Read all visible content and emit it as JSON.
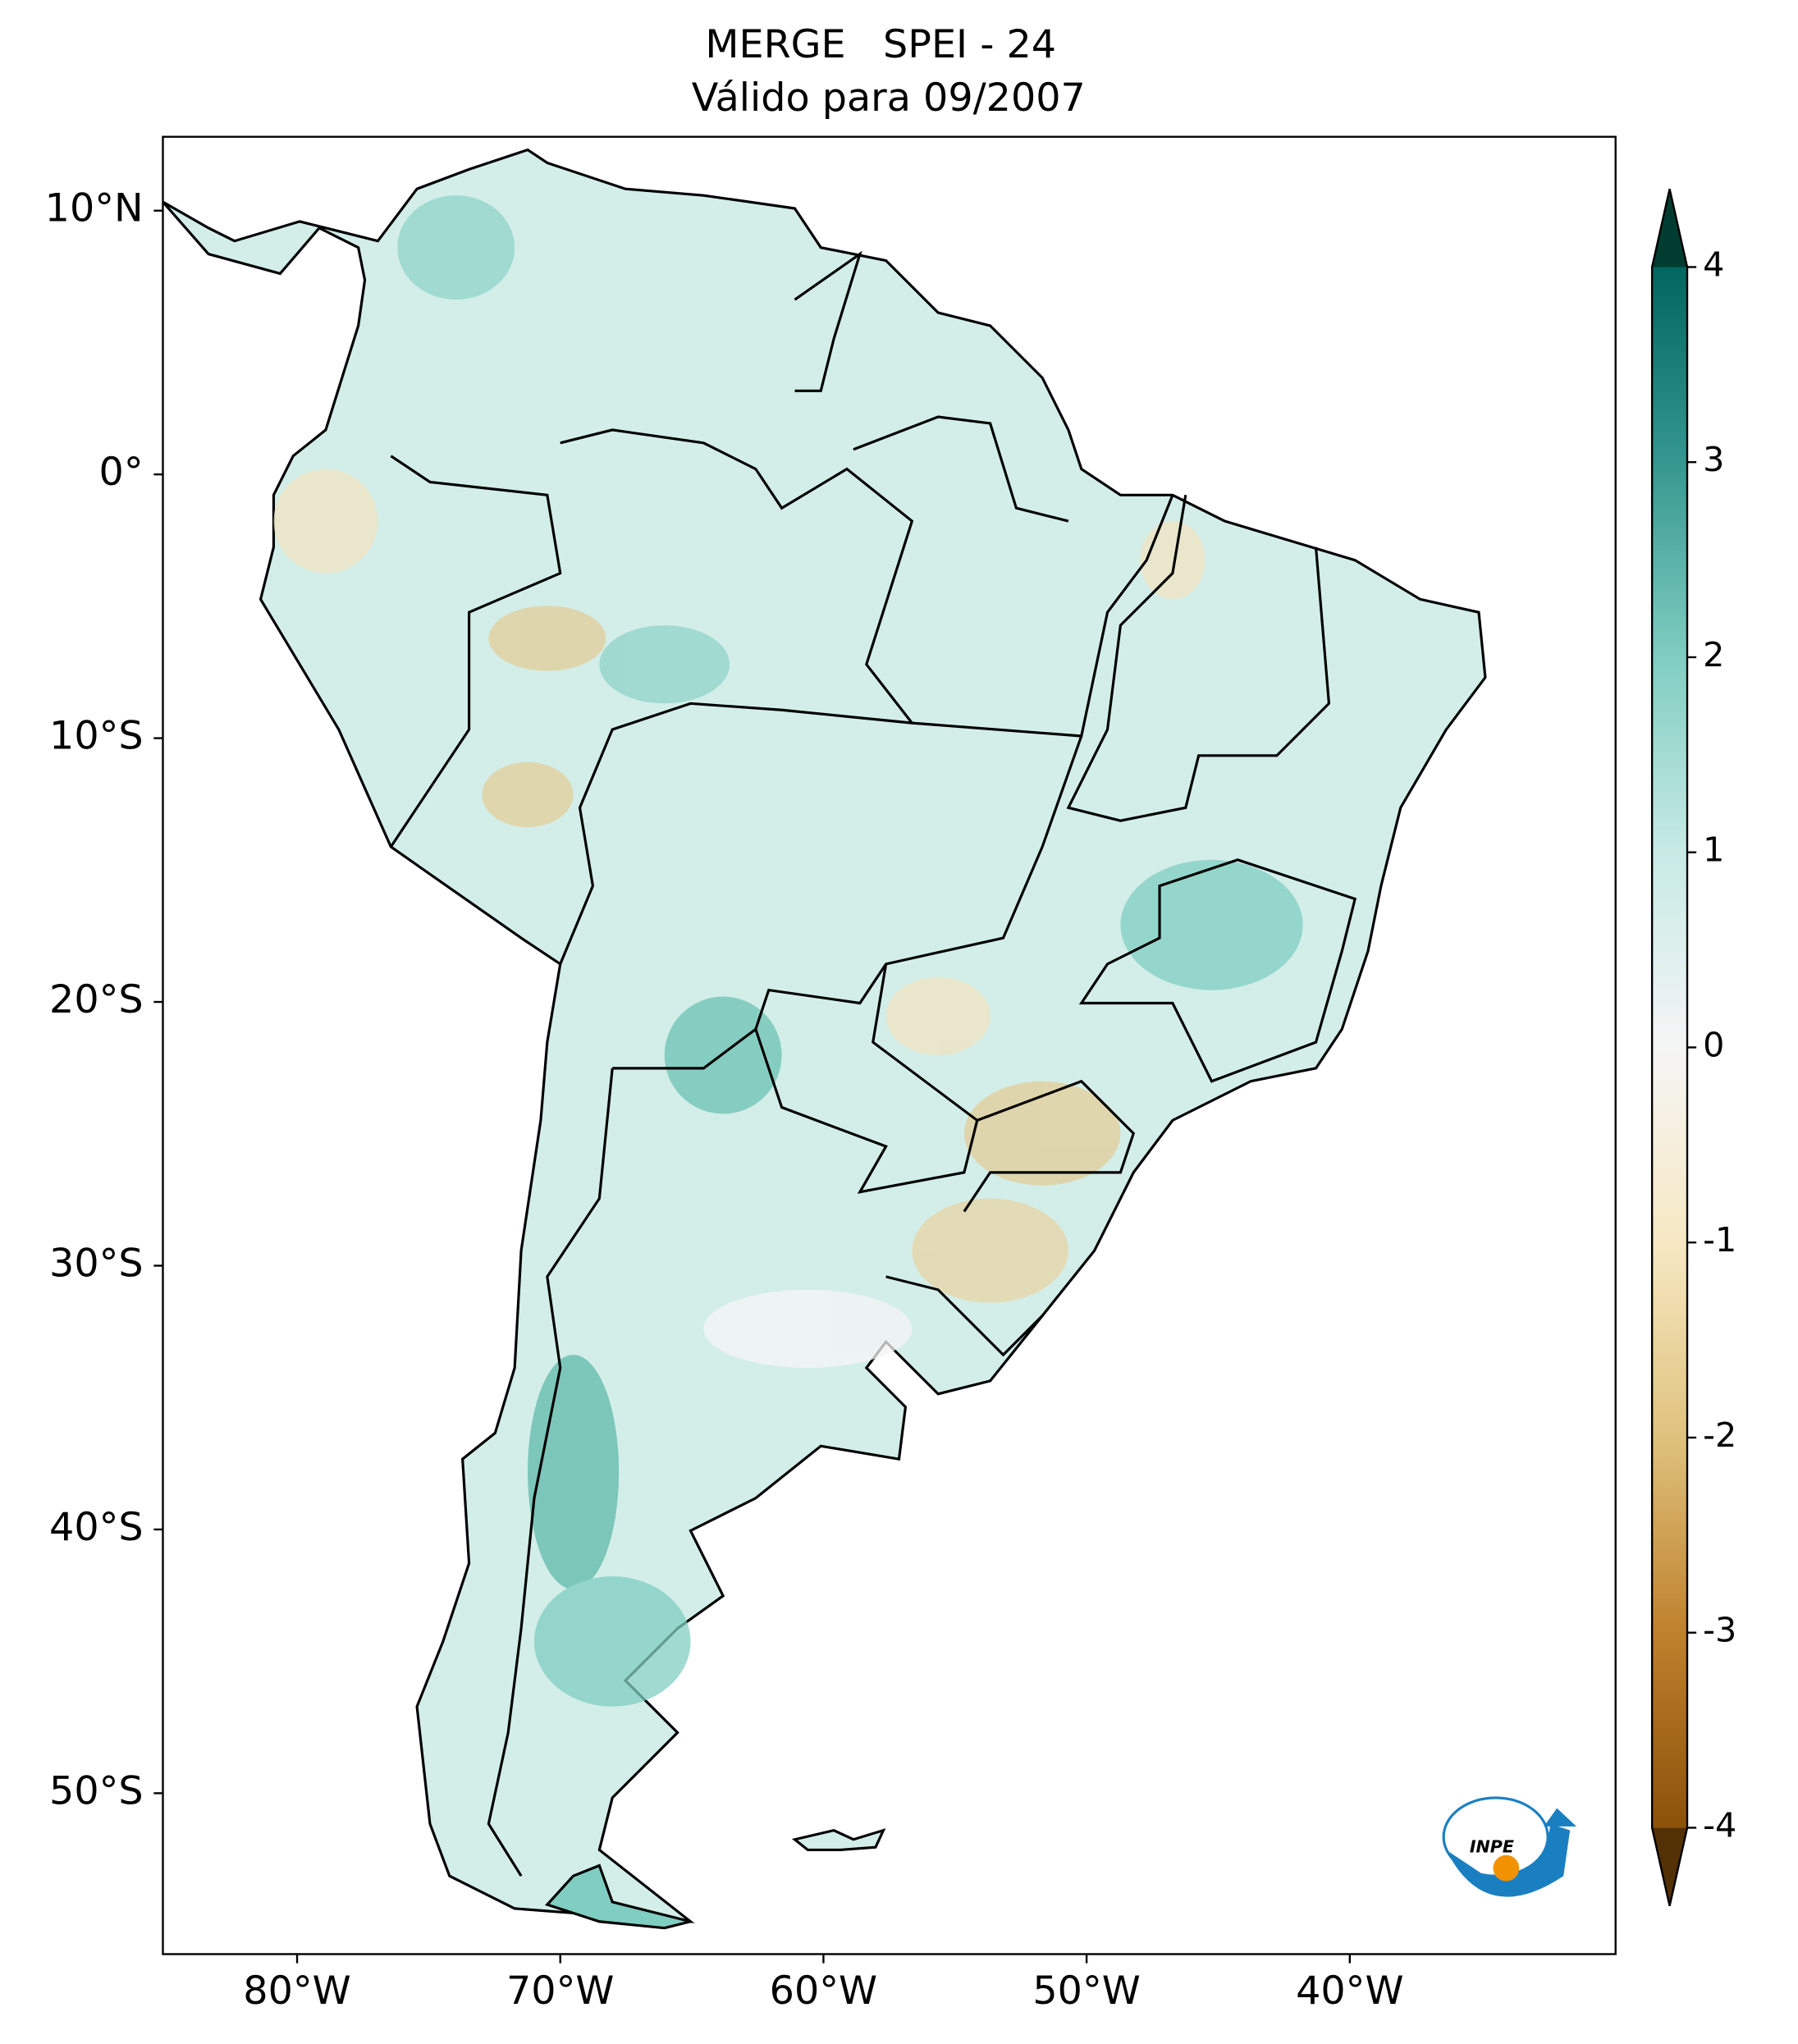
{
  "chart_data": {
    "type": "map",
    "title": "MERGE   SPEI - 24",
    "subtitle": "Válido para 09/2007",
    "xlim": [
      -85.1,
      -29.9
    ],
    "ylim": [
      -56.1,
      12.8
    ],
    "xticks": [
      {
        "value": -80,
        "label": "80°W"
      },
      {
        "value": -70,
        "label": "70°W"
      },
      {
        "value": -60,
        "label": "60°W"
      },
      {
        "value": -50,
        "label": "50°W"
      },
      {
        "value": -40,
        "label": "40°W"
      }
    ],
    "yticks": [
      {
        "value": 10,
        "label": "10°N"
      },
      {
        "value": 0,
        "label": "0°"
      },
      {
        "value": -10,
        "label": "10°S"
      },
      {
        "value": -20,
        "label": "20°S"
      },
      {
        "value": -30,
        "label": "30°S"
      },
      {
        "value": -40,
        "label": "40°S"
      },
      {
        "value": -50,
        "label": "50°S"
      }
    ],
    "colorbar": {
      "lim": [
        -4,
        4
      ],
      "ticks": [
        -4,
        -3,
        -2,
        -1,
        0,
        1,
        2,
        3,
        4
      ],
      "colors": [
        "#543005",
        "#8c510a",
        "#bf812d",
        "#dfc27d",
        "#f6e8c3",
        "#f5f5f5",
        "#c7eae5",
        "#80cdc1",
        "#35978f",
        "#01665e",
        "#003c30"
      ]
    },
    "logo_text": "INPE"
  }
}
